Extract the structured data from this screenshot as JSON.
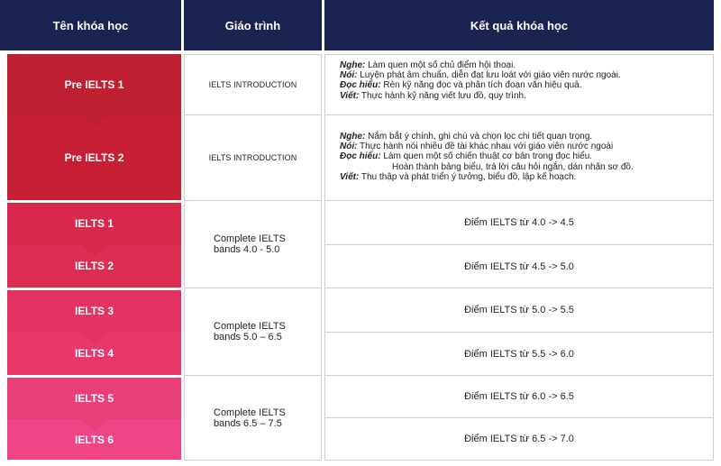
{
  "header": {
    "course_name": "Tên khóa học",
    "syllabus": "Giáo trình",
    "result": "Kết quả khóa học"
  },
  "colors": {
    "header_bg": "#1b2350",
    "steps": [
      "#be1f31",
      "#c72034",
      "#d7294b",
      "#dc2d52",
      "#e33363",
      "#e8376a",
      "#ea3e79",
      "#ef4485"
    ]
  },
  "courses": [
    {
      "name": "Pre IELTS 1"
    },
    {
      "name": "Pre IELTS 2"
    },
    {
      "name": "IELTS 1"
    },
    {
      "name": "IELTS 2"
    },
    {
      "name": "IELTS 3"
    },
    {
      "name": "IELTS 4"
    },
    {
      "name": "IELTS 5"
    },
    {
      "name": "IELTS 6"
    }
  ],
  "syllabi": [
    "IELTS INTRODUCTION",
    "IELTS INTRODUCTION",
    "Complete IELTS\nbands 4.0 - 5.0",
    "Complete IELTS\nbands 5.0 – 6.5",
    "Complete IELTS\nbands 6.5 – 7.5"
  ],
  "pre1_results": [
    {
      "label": "Nghe:",
      "text": " Làm quen một số chủ điểm hội thoại."
    },
    {
      "label": "Nói:",
      "text": " Luyện phát âm chuẩn, diễn đạt lưu loát với giáo viên nước ngoài."
    },
    {
      "label": "Đọc hiểu:",
      "text": " Rèn kỹ năng đọc và phân tích đoạn văn hiệu quả."
    },
    {
      "label": "Viết:",
      "text": " Thực hành kỹ năng viết lưu đồ, quy trình."
    }
  ],
  "pre2_results": [
    {
      "label": "Nghe:",
      "text": " Nắm bắt ý chính, ghi chú và chọn lọc chi tiết quan trọng."
    },
    {
      "label": "Nói:",
      "text": " Thực hành nói nhiều đề tài khác nhau với giáo viên nước ngoài"
    },
    {
      "label": "Đọc hiểu:",
      "text": " Làm quen một số chiến thuật cơ bản trong đọc hiểu."
    },
    {
      "label": "",
      "text": "Hoàn thành bảng biểu, trả lời câu hỏi ngắn, dán nhãn sơ đồ."
    },
    {
      "label": "Viết:",
      "text": " Thu thập và phát triển ý tưởng, biểu đồ, lập kế hoạch."
    }
  ],
  "band_results": [
    "Điểm IELTS từ 4.0 -> 4.5",
    "Điểm IELTS từ 4.5 -> 5.0",
    "Điểm IELTS từ 5.0 -> 5.5",
    "Điểm IELTS từ 5.5 -> 6.0",
    "Điểm IELTS từ 6.0 -> 6.5",
    "Điểm IELTS từ 6.5 -> 7.0"
  ]
}
